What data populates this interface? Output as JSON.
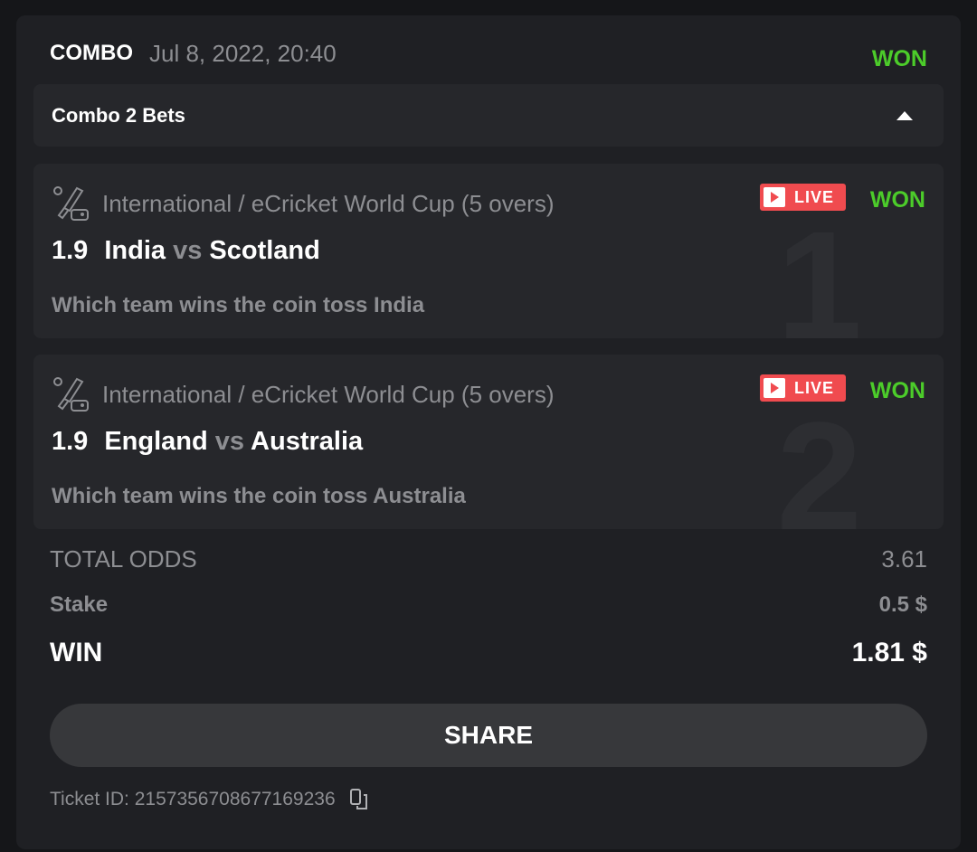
{
  "header": {
    "type": "COMBO",
    "date": "Jul 8, 2022, 20:40",
    "status": "WON"
  },
  "combo": {
    "title": "Combo 2 Bets"
  },
  "bets": [
    {
      "number": "1",
      "league": "International / eCricket World Cup (5 overs)",
      "live": "LIVE",
      "status": "WON",
      "odds": "1.9",
      "home": "India",
      "vs": "vs",
      "away": "Scotland",
      "selection": "Which team wins the coin toss India"
    },
    {
      "number": "2",
      "league": "International / eCricket World Cup (5 overs)",
      "live": "LIVE",
      "status": "WON",
      "odds": "1.9",
      "home": "England",
      "vs": "vs",
      "away": "Australia",
      "selection": "Which team wins the coin toss Australia"
    }
  ],
  "summary": {
    "total_odds_label": "TOTAL ODDS",
    "total_odds": "3.61",
    "stake_label": "Stake",
    "stake": "0.5 $",
    "win_label": "WIN",
    "win": "1.81 $"
  },
  "share_label": "SHARE",
  "ticket": "Ticket ID: 2157356708677169236",
  "colors": {
    "won": "#4ccc2a",
    "live": "#f04b4f",
    "card": "#1f2024"
  }
}
